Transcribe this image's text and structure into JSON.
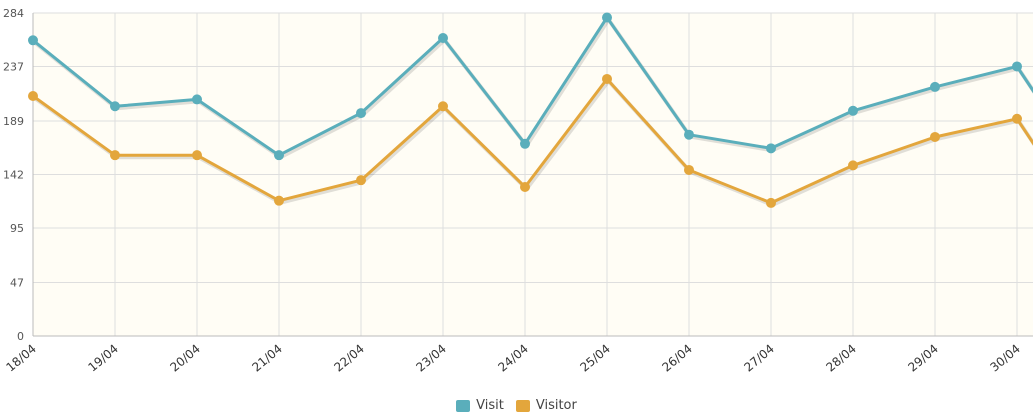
{
  "chart_data": {
    "type": "line",
    "categories": [
      "18/04",
      "19/04",
      "20/04",
      "21/04",
      "22/04",
      "23/04",
      "24/04",
      "25/04",
      "26/04",
      "27/04",
      "28/04",
      "29/04",
      "30/04"
    ],
    "yticks": [
      0,
      47,
      95,
      142,
      189,
      237,
      284
    ],
    "ylim": [
      0,
      284
    ],
    "grid": true,
    "legend_position": "bottom-center",
    "series": [
      {
        "name": "Visit",
        "color": "#5aaebb",
        "values": [
          260,
          202,
          208,
          159,
          196,
          262,
          169,
          280,
          177,
          165,
          198,
          219,
          237
        ]
      },
      {
        "name": "Visitor",
        "color": "#e3a63c",
        "values": [
          211,
          159,
          159,
          119,
          137,
          202,
          131,
          226,
          146,
          117,
          150,
          175,
          191
        ]
      }
    ],
    "plot_background": "#fffdf5",
    "grid_color": "#dedede"
  },
  "legend": {
    "visit": "Visit",
    "visitor": "Visitor"
  }
}
